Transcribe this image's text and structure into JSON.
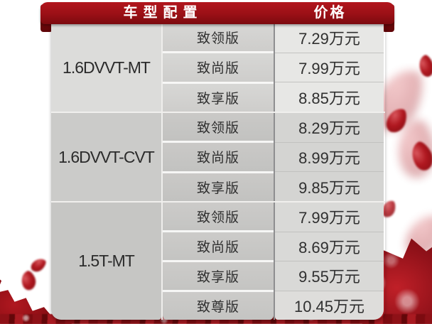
{
  "header": {
    "config_label": "车型配置",
    "price_label": "价格"
  },
  "table": {
    "groups": [
      {
        "model": "1.6DVVT-MT",
        "trims": [
          {
            "name": "致领版",
            "price": "7.29万元"
          },
          {
            "name": "致尚版",
            "price": "7.99万元"
          },
          {
            "name": "致享版",
            "price": "8.85万元"
          }
        ]
      },
      {
        "model": "1.6DVVT-CVT",
        "trims": [
          {
            "name": "致领版",
            "price": "8.29万元"
          },
          {
            "name": "致尚版",
            "price": "8.99万元"
          },
          {
            "name": "致享版",
            "price": "9.85万元"
          }
        ]
      },
      {
        "model": "1.5T-MT",
        "trims": [
          {
            "name": "致领版",
            "price": "7.99万元"
          },
          {
            "name": "致尚版",
            "price": "8.69万元"
          },
          {
            "name": "致享版",
            "price": "9.55万元"
          },
          {
            "name": "致尊版",
            "price": "10.45万元"
          }
        ]
      }
    ]
  },
  "chart_data": {
    "type": "table",
    "title": "车型配置与价格",
    "columns": [
      "车型",
      "配置",
      "价格"
    ],
    "rows": [
      [
        "1.6DVVT-MT",
        "致领版",
        "7.29万元"
      ],
      [
        "1.6DVVT-MT",
        "致尚版",
        "7.99万元"
      ],
      [
        "1.6DVVT-MT",
        "致享版",
        "8.85万元"
      ],
      [
        "1.6DVVT-CVT",
        "致领版",
        "8.29万元"
      ],
      [
        "1.6DVVT-CVT",
        "致尚版",
        "8.99万元"
      ],
      [
        "1.6DVVT-CVT",
        "致享版",
        "9.85万元"
      ],
      [
        "1.5T-MT",
        "致领版",
        "7.99万元"
      ],
      [
        "1.5T-MT",
        "致尚版",
        "8.69万元"
      ],
      [
        "1.5T-MT",
        "致享版",
        "9.55万元"
      ],
      [
        "1.5T-MT",
        "致尊版",
        "10.45万元"
      ]
    ]
  },
  "colors": {
    "ribbon_red": "#9a1016",
    "ribbon_red_dark": "#7c0a0f",
    "petal_red": "#b01820",
    "cell_gray_light": "#dcdcda",
    "cell_gray_mid": "#cbcbc9",
    "cell_gray_dark": "#c6c6c4",
    "price_col_light": "#e7e7e5",
    "text_dark": "#2b2b2b",
    "header_text": "#ffffff"
  }
}
